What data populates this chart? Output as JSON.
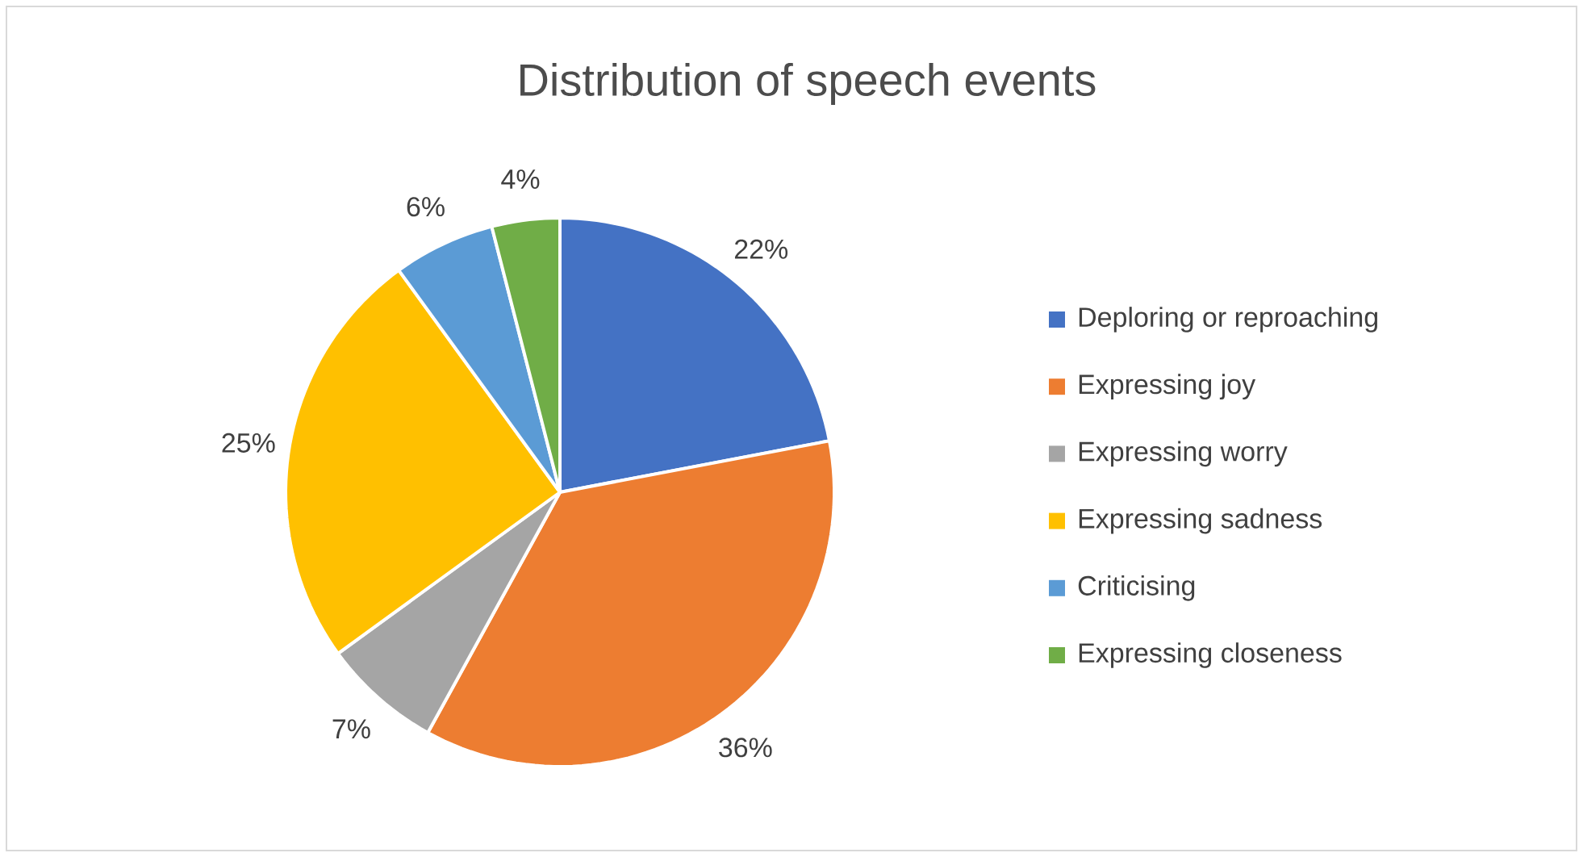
{
  "chart_data": {
    "type": "pie",
    "title": "Distribution of speech events",
    "categories": [
      "Deploring or reproaching",
      "Expressing joy",
      "Expressing worry",
      "Expressing sadness",
      "Criticising",
      "Expressing closeness"
    ],
    "values": [
      22,
      36,
      7,
      25,
      6,
      4
    ],
    "colors": [
      "#4472c4",
      "#ed7d31",
      "#a5a5a5",
      "#ffc000",
      "#5b9bd5",
      "#70ad47"
    ],
    "value_labels": [
      "22%",
      "36%",
      "7%",
      "25%",
      "6%",
      "4%"
    ],
    "legend": "right"
  }
}
